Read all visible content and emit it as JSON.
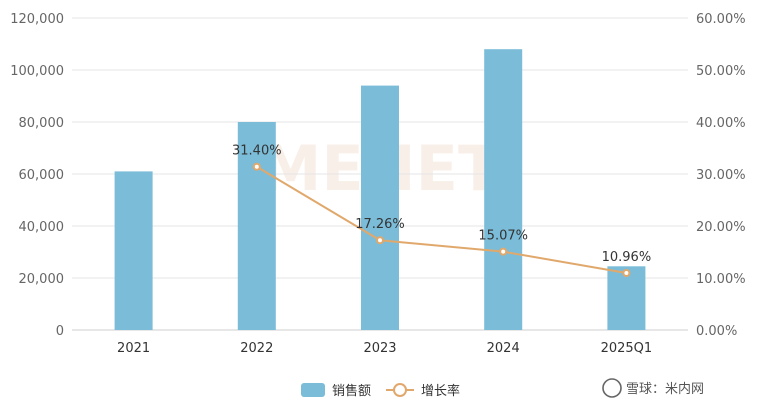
{
  "chart_data": {
    "type": "bar",
    "categories": [
      "2021",
      "2022",
      "2023",
      "2024",
      "2025Q1"
    ],
    "series": [
      {
        "name": "销售额",
        "type": "bar",
        "axis": "left",
        "values": [
          61000,
          80000,
          94000,
          108000,
          24500
        ]
      },
      {
        "name": "增长率",
        "type": "line",
        "axis": "right",
        "values": [
          null,
          31.4,
          17.26,
          15.07,
          10.96
        ],
        "labels": [
          "",
          "31.40%",
          "17.26%",
          "15.07%",
          "10.96%"
        ]
      }
    ],
    "left_axis": {
      "min": 0,
      "max": 120000,
      "ticks": [
        "0",
        "20,000",
        "40,000",
        "60,000",
        "80,000",
        "100,000",
        "120,000"
      ]
    },
    "right_axis": {
      "min": 0,
      "max": 60,
      "ticks": [
        "0.00%",
        "10.00%",
        "20.00%",
        "30.00%",
        "40.00%",
        "50.00%",
        "60.00%"
      ]
    },
    "grid": true,
    "legend_position": "bottom-center",
    "colors": {
      "bar": "#7bbcd8",
      "line": "#e1a86c",
      "grid": "#e6e6e6"
    }
  },
  "watermarks": {
    "background_logo": "MENET",
    "footer": "雪球：米内网"
  }
}
